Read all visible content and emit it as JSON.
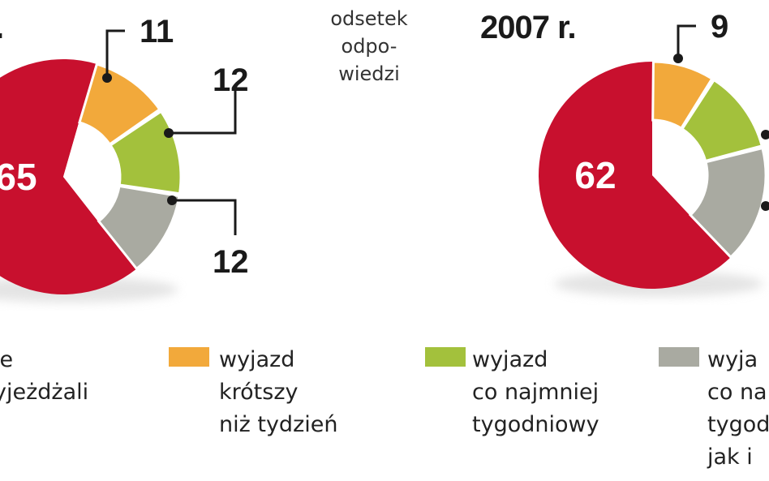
{
  "note": {
    "lines": [
      "odsetek",
      "odpo-",
      "wiedzi"
    ]
  },
  "chart_data": [
    {
      "type": "pie",
      "title": ".",
      "slices": [
        {
          "label": "...ie ...yjeżdżali",
          "value": 65,
          "color": "#c8102e"
        },
        {
          "label": "wyjazd krótszy niż tydzień",
          "value": 11,
          "color": "#f2a93b"
        },
        {
          "label": "wyjazd co najmniej tygodniowy",
          "value": 12,
          "color": "#a3c13c"
        },
        {
          "label": "wyja... co na... tygod... jak i...",
          "value": 12,
          "color": "#a9aaa1"
        }
      ]
    },
    {
      "type": "pie",
      "title": "2007 r.",
      "slices": [
        {
          "label": "...ie ...yjeżdżali",
          "value": 62,
          "color": "#c8102e"
        },
        {
          "label": "wyjazd krótszy niż tydzień",
          "value": 9,
          "color": "#f2a93b"
        },
        {
          "label": "wyjazd co najmniej tygodniowy",
          "value": 12,
          "color": "#a3c13c"
        },
        {
          "label": "wyja... co na... tygod... jak i...",
          "value": 17,
          "color": "#a9aaa1"
        }
      ]
    }
  ],
  "legend": [
    {
      "lines": [
        "le",
        "yjeżdżali"
      ],
      "color": "#c8102e"
    },
    {
      "lines": [
        "wyjazd",
        "krótszy",
        "niż tydzień"
      ],
      "color": "#f2a93b"
    },
    {
      "lines": [
        "wyjazd",
        "co najmniej",
        "tygodniowy"
      ],
      "color": "#a3c13c"
    },
    {
      "lines": [
        "wyja",
        "co na",
        "tygod",
        "jak i"
      ],
      "color": "#a9aaa1"
    }
  ]
}
